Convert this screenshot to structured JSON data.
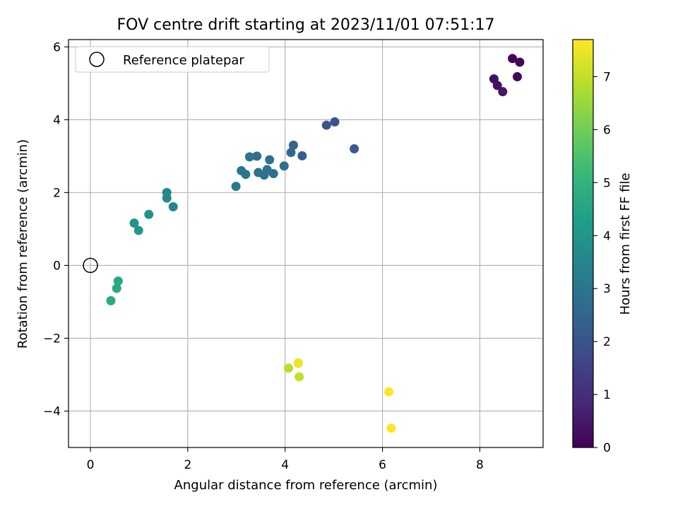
{
  "chart_data": {
    "type": "scatter",
    "title": "FOV centre drift starting at 2023/11/01 07:51:17",
    "xlabel": "Angular distance from reference (arcmin)",
    "ylabel": "Rotation from reference (arcmin)",
    "xlim": [
      -0.45,
      9.3
    ],
    "ylim": [
      -5.0,
      6.2
    ],
    "xticks": [
      0,
      2,
      4,
      6,
      8
    ],
    "xtick_labels": [
      "0",
      "2",
      "4",
      "6",
      "8"
    ],
    "yticks": [
      -4,
      -2,
      0,
      2,
      4,
      6
    ],
    "ytick_labels": [
      "−4",
      "−2",
      "0",
      "2",
      "4",
      "6"
    ],
    "grid": true,
    "legend": {
      "position": "top-left",
      "entries": [
        "Reference platepar"
      ]
    },
    "reference_point": {
      "x": 0,
      "y": 0,
      "marker": "open-circle"
    },
    "colorbar": {
      "label": "Hours from first FF file",
      "min": 0,
      "max": 7.7,
      "ticks": [
        0,
        1,
        2,
        3,
        4,
        5,
        6,
        7
      ],
      "tick_labels": [
        "0",
        "1",
        "2",
        "3",
        "4",
        "5",
        "6",
        "7"
      ],
      "colormap": "viridis",
      "stops": [
        "#440154",
        "#482878",
        "#3e4989",
        "#31688e",
        "#26828e",
        "#1f9e89",
        "#35b779",
        "#6ece58",
        "#b5de2b",
        "#fde725"
      ]
    },
    "points": [
      {
        "x": 8.67,
        "y": 5.68,
        "t": 0.05
      },
      {
        "x": 8.82,
        "y": 5.58,
        "t": 0.1
      },
      {
        "x": 8.29,
        "y": 5.12,
        "t": 0.3
      },
      {
        "x": 8.77,
        "y": 5.18,
        "t": 0.15
      },
      {
        "x": 8.36,
        "y": 4.94,
        "t": 0.35
      },
      {
        "x": 8.47,
        "y": 4.77,
        "t": 0.45
      },
      {
        "x": 5.02,
        "y": 3.94,
        "t": 2.0
      },
      {
        "x": 4.85,
        "y": 3.85,
        "t": 2.1
      },
      {
        "x": 5.42,
        "y": 3.2,
        "t": 2.2
      },
      {
        "x": 4.17,
        "y": 3.3,
        "t": 2.5
      },
      {
        "x": 4.12,
        "y": 3.1,
        "t": 2.6
      },
      {
        "x": 4.35,
        "y": 3.01,
        "t": 2.4
      },
      {
        "x": 3.42,
        "y": 3.0,
        "t": 2.75
      },
      {
        "x": 3.27,
        "y": 2.98,
        "t": 2.9
      },
      {
        "x": 3.68,
        "y": 2.9,
        "t": 2.85
      },
      {
        "x": 3.98,
        "y": 2.73,
        "t": 2.8
      },
      {
        "x": 3.1,
        "y": 2.6,
        "t": 3.0
      },
      {
        "x": 3.19,
        "y": 2.5,
        "t": 3.05
      },
      {
        "x": 3.63,
        "y": 2.63,
        "t": 2.95
      },
      {
        "x": 3.45,
        "y": 2.55,
        "t": 3.0
      },
      {
        "x": 3.57,
        "y": 2.48,
        "t": 2.9
      },
      {
        "x": 3.76,
        "y": 2.52,
        "t": 2.85
      },
      {
        "x": 2.99,
        "y": 2.17,
        "t": 3.1
      },
      {
        "x": 1.57,
        "y": 2.0,
        "t": 3.6
      },
      {
        "x": 1.57,
        "y": 1.85,
        "t": 3.6
      },
      {
        "x": 1.7,
        "y": 1.61,
        "t": 3.55
      },
      {
        "x": 1.2,
        "y": 1.4,
        "t": 3.95
      },
      {
        "x": 0.9,
        "y": 1.16,
        "t": 4.0
      },
      {
        "x": 0.99,
        "y": 0.96,
        "t": 4.05
      },
      {
        "x": 0.57,
        "y": -0.43,
        "t": 4.6
      },
      {
        "x": 0.54,
        "y": -0.63,
        "t": 4.65
      },
      {
        "x": 0.42,
        "y": -0.97,
        "t": 4.7
      },
      {
        "x": 4.27,
        "y": -2.67,
        "t": 7.7
      },
      {
        "x": 4.27,
        "y": -2.69,
        "t": 7.5
      },
      {
        "x": 4.07,
        "y": -2.82,
        "t": 6.9
      },
      {
        "x": 4.29,
        "y": -3.06,
        "t": 7.0
      },
      {
        "x": 6.13,
        "y": -3.47,
        "t": 7.7
      },
      {
        "x": 6.18,
        "y": -4.47,
        "t": 7.7
      }
    ]
  }
}
